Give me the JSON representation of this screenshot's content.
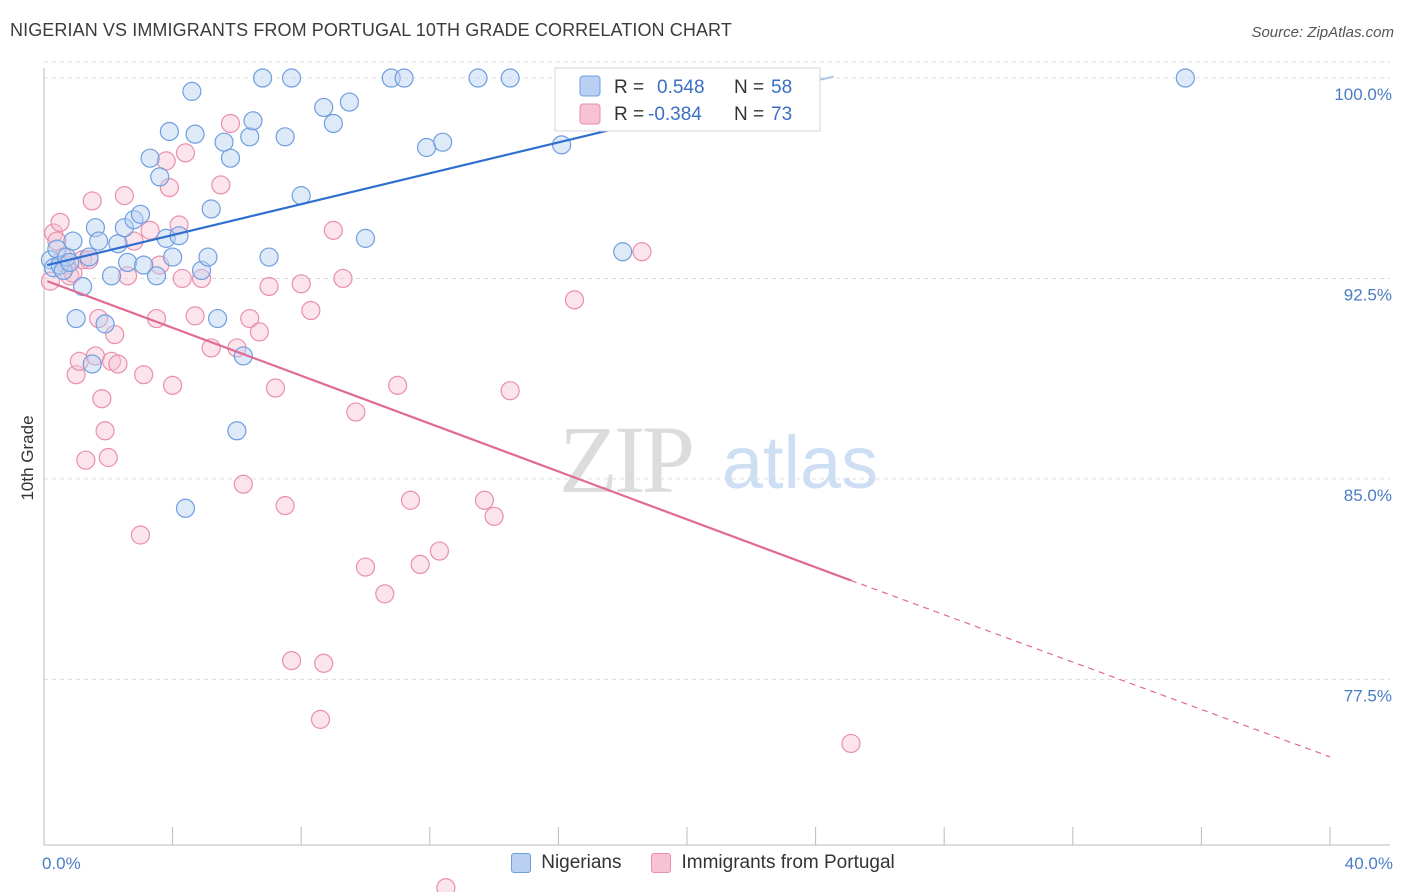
{
  "header": {
    "title": "NIGERIAN VS IMMIGRANTS FROM PORTUGAL 10TH GRADE CORRELATION CHART",
    "source": "Source: ZipAtlas.com"
  },
  "watermark": {
    "zip": "ZIP",
    "atlas": "atlas"
  },
  "colors": {
    "blue_fill": "#b9d0f2",
    "blue_stroke": "#6f9ee0",
    "blue_line": "#2f6fce",
    "pink_fill": "#f7c3d3",
    "pink_stroke": "#ea8fac",
    "pink_line": "#e06a93",
    "grid": "#dddddd",
    "tick_text": "#4a7cc6"
  },
  "legend": {
    "r_label": "R =",
    "n_label": "N =",
    "entries": [
      {
        "r": "0.548",
        "n": "58"
      },
      {
        "r": "-0.384",
        "n": "73"
      }
    ]
  },
  "bottom_legend": [
    "Nigerians",
    "Immigrants from Portugal"
  ],
  "chart_data": {
    "type": "scatter",
    "title": "NIGERIAN VS IMMIGRANTS FROM PORTUGAL 10TH GRADE CORRELATION CHART",
    "xlabel": "",
    "ylabel": "10th Grade",
    "xlim": [
      0,
      40
    ],
    "ylim": [
      71.3,
      100.6
    ],
    "x_tick_labels": [
      "0.0%",
      "40.0%"
    ],
    "y_ticks": [
      77.5,
      85.0,
      92.5,
      100.0
    ],
    "y_tick_labels": [
      "77.5%",
      "85.0%",
      "92.5%",
      "100.0%"
    ],
    "grid": "horizontal dashed",
    "series": [
      {
        "name": "Nigerians",
        "trend": {
          "x": [
            0.1,
            24.0
          ],
          "y": [
            93.0,
            99.9
          ]
        },
        "x": [
          0.2,
          0.3,
          0.4,
          0.5,
          0.6,
          0.7,
          0.8,
          0.9,
          1.0,
          1.2,
          1.4,
          1.5,
          1.6,
          1.7,
          1.9,
          2.1,
          2.3,
          2.5,
          2.6,
          2.8,
          3.0,
          3.1,
          3.3,
          3.5,
          3.6,
          3.8,
          3.9,
          4.0,
          4.2,
          4.4,
          4.6,
          4.7,
          4.9,
          5.1,
          5.2,
          5.4,
          5.6,
          5.8,
          6.0,
          6.2,
          6.4,
          6.5,
          6.8,
          7.0,
          7.5,
          7.7,
          8.0,
          8.7,
          9.0,
          9.5,
          10.0,
          10.8,
          11.2,
          11.9,
          12.4,
          13.5,
          14.5,
          16.1,
          17.0,
          18.0,
          19.1,
          21.0,
          23.4,
          35.5
        ],
        "y": [
          93.2,
          92.9,
          93.6,
          93.0,
          92.8,
          93.3,
          93.1,
          93.9,
          91.0,
          92.2,
          93.3,
          89.3,
          94.4,
          93.9,
          90.8,
          92.6,
          93.8,
          94.4,
          93.1,
          94.7,
          94.9,
          93.0,
          97.0,
          92.6,
          96.3,
          94.0,
          98.0,
          93.3,
          94.1,
          83.9,
          99.5,
          97.9,
          92.8,
          93.3,
          95.1,
          91.0,
          97.6,
          97.0,
          86.8,
          89.6,
          97.8,
          98.4,
          100.0,
          93.3,
          97.8,
          100.0,
          95.6,
          98.9,
          98.3,
          99.1,
          94.0,
          100.0,
          100.0,
          97.4,
          97.6,
          100.0,
          100.0,
          97.5,
          100.0,
          93.5,
          100.0,
          100.0,
          100.0,
          100.0
        ]
      },
      {
        "name": "Immigrants from Portugal",
        "trend": {
          "x": [
            0.1,
            25.1
          ],
          "y": [
            92.4,
            81.2
          ],
          "dashed_to": {
            "x": 40.0,
            "y": 74.6
          }
        },
        "x": [
          0.2,
          0.3,
          0.4,
          0.5,
          0.6,
          0.7,
          0.8,
          0.9,
          1.0,
          1.1,
          1.2,
          1.3,
          1.4,
          1.5,
          1.6,
          1.7,
          1.8,
          1.9,
          2.0,
          2.1,
          2.2,
          2.3,
          2.5,
          2.6,
          2.8,
          3.0,
          3.1,
          3.3,
          3.5,
          3.6,
          3.8,
          3.9,
          4.0,
          4.2,
          4.3,
          4.4,
          4.7,
          4.9,
          5.2,
          5.5,
          5.8,
          6.0,
          6.2,
          6.4,
          6.7,
          7.0,
          7.2,
          7.5,
          7.7,
          8.0,
          8.3,
          8.6,
          8.7,
          9.0,
          9.3,
          9.7,
          10.0,
          10.6,
          11.0,
          11.4,
          11.7,
          12.3,
          12.5,
          13.7,
          14.0,
          14.5,
          16.5,
          18.0,
          18.6,
          25.1
        ],
        "y": [
          92.4,
          94.2,
          93.9,
          94.6,
          93.3,
          93.0,
          92.6,
          92.7,
          88.9,
          89.4,
          93.2,
          85.7,
          93.2,
          95.4,
          89.6,
          91.0,
          88.0,
          86.8,
          85.8,
          89.4,
          90.4,
          89.3,
          95.6,
          92.6,
          93.9,
          82.9,
          88.9,
          94.3,
          91.0,
          93.0,
          96.9,
          95.9,
          88.5,
          94.5,
          92.5,
          97.2,
          91.1,
          92.5,
          89.9,
          96.0,
          98.3,
          89.9,
          84.8,
          91.0,
          90.5,
          92.2,
          88.4,
          84.0,
          78.2,
          92.3,
          91.3,
          76.0,
          78.1,
          94.3,
          92.5,
          87.5,
          81.7,
          80.7,
          88.5,
          84.2,
          81.8,
          82.3,
          69.7,
          84.2,
          83.6,
          88.3,
          91.7,
          100.0,
          93.5,
          75.1
        ]
      }
    ]
  }
}
